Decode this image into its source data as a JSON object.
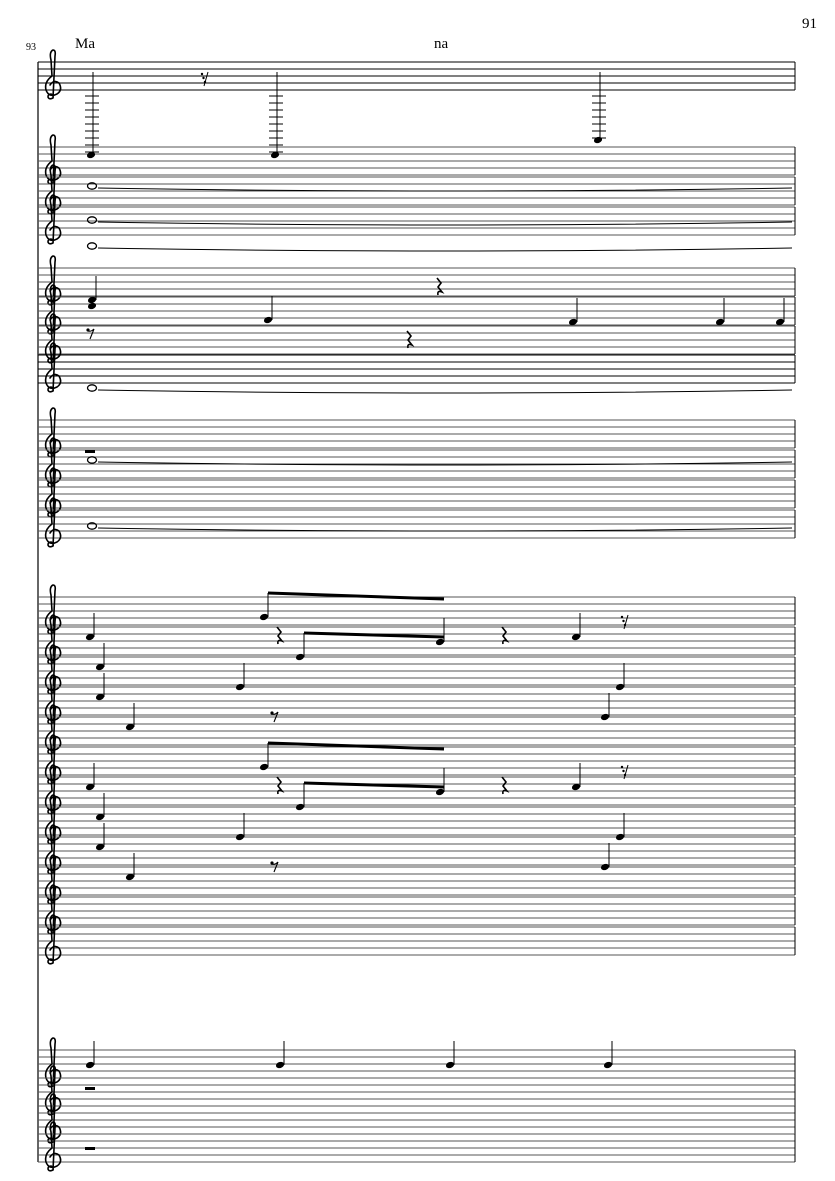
{
  "page": {
    "page_number": "91",
    "measure_number": "93",
    "lyrics": [
      "Ma",
      "na"
    ]
  },
  "score": {
    "clef": "treble",
    "staff_count": 28,
    "colors": {
      "ink": "#000000",
      "staff_line": "#555555"
    }
  }
}
